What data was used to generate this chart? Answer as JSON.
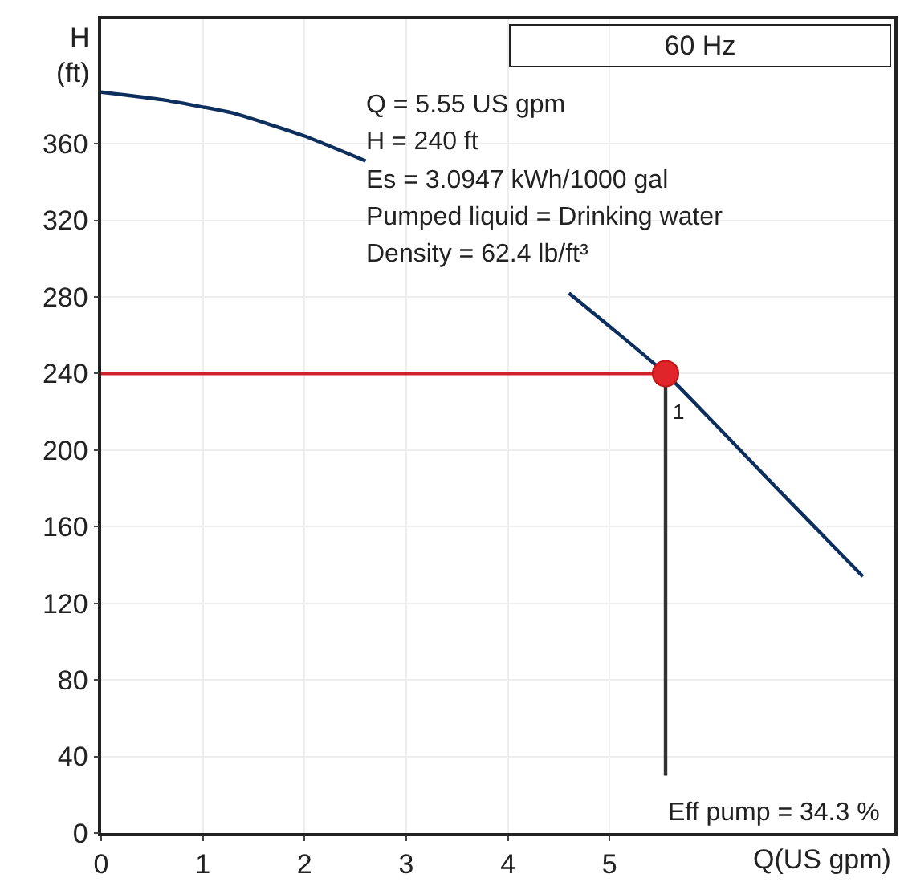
{
  "chart_data": {
    "type": "line",
    "title": "60 Hz",
    "xlabel": "Q(US gpm)",
    "ylabel": "H\n(ft)",
    "xlim": [
      0,
      7.8
    ],
    "ylim": [
      0,
      425
    ],
    "xticks": [
      0,
      1,
      2,
      3,
      4,
      5
    ],
    "yticks": [
      0,
      40,
      80,
      120,
      160,
      200,
      240,
      280,
      320,
      360
    ],
    "grid": true,
    "series": [
      {
        "color": "#0d2f5e",
        "x": [
          0,
          0.6,
          1.3,
          2.0,
          2.6,
          3.4,
          4.6,
          5.55,
          6.5,
          7.49
        ],
        "values": [
          387,
          383,
          376,
          364,
          351,
          null,
          282,
          240,
          188,
          134
        ]
      },
      {
        "type": "line",
        "color": "#d0202a",
        "x": [
          0,
          5.55
        ],
        "values": [
          240,
          240
        ]
      },
      {
        "type": "line",
        "color": "#333333",
        "x": [
          5.55,
          5.55
        ],
        "values": [
          240,
          30
        ]
      },
      {
        "type": "scatter",
        "marker": "circle",
        "color": "#e0242a",
        "x": [
          5.55
        ],
        "values": [
          240
        ]
      }
    ],
    "annotations": [
      "Q = 5.55 US gpm",
      "H = 240 ft",
      "Es = 3.0947 kWh/1000 gal",
      "Pumped liquid = Drinking water",
      "Density = 62.4 lb/ft³",
      "Eff pump = 34.3 %",
      {
        "text": "1",
        "x": 5.55,
        "y": 240
      }
    ]
  }
}
